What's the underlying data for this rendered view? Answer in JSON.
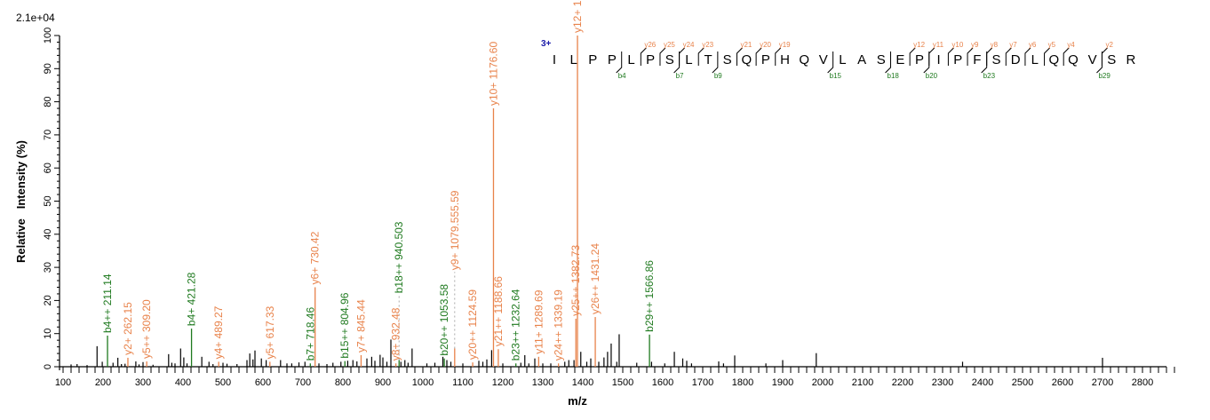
{
  "chart_data": {
    "type": "bar",
    "subtype": "mass-spectrum-sticks",
    "scale_label": "2.1e+04",
    "xlabel": "m/z",
    "ylabel": "Relative   Intensity (%)",
    "xlim": [
      100,
      2880
    ],
    "ylim": [
      0,
      100
    ],
    "x_ticks": [
      100,
      200,
      300,
      400,
      500,
      600,
      700,
      800,
      900,
      1000,
      1100,
      1200,
      1300,
      1400,
      1500,
      1600,
      1700,
      1800,
      1900,
      2000,
      2100,
      2200,
      2300,
      2400,
      2500,
      2600,
      2700,
      2800
    ],
    "y_ticks": [
      0,
      10,
      20,
      30,
      40,
      50,
      60,
      70,
      80,
      90,
      100
    ],
    "grid": false,
    "colors": {
      "y_ion": "#e8824a",
      "b_ion": "#1f7a1f",
      "unassigned": "#000000",
      "charge": "#1a1aa8"
    },
    "annotated_peaks": [
      {
        "label": "b4++ 211.14",
        "mz": 211.14,
        "intensity": 9.4,
        "ion": "b"
      },
      {
        "label": "y2+ 262.15",
        "mz": 262.15,
        "intensity": 2.7,
        "ion": "y"
      },
      {
        "label": "y5++ 309.20",
        "mz": 309.2,
        "intensity": 1.6,
        "ion": "y"
      },
      {
        "label": "b4+ 421.28",
        "mz": 421.28,
        "intensity": 11.5,
        "ion": "b"
      },
      {
        "label": "y4+ 489.27",
        "mz": 489.27,
        "intensity": 1.5,
        "ion": "y"
      },
      {
        "label": "y5+ 617.33",
        "mz": 617.33,
        "intensity": 1.5,
        "ion": "y"
      },
      {
        "label": "b7+ 718.46",
        "mz": 718.46,
        "intensity": 1.0,
        "ion": "b"
      },
      {
        "label": "y6+ 730.42",
        "mz": 730.42,
        "intensity": 24.0,
        "ion": "y"
      },
      {
        "label": "b15++ 804.96",
        "mz": 804.96,
        "intensity": 1.7,
        "ion": "b"
      },
      {
        "label": "y7+ 845.44",
        "mz": 845.44,
        "intensity": 3.5,
        "ion": "y"
      },
      {
        "label": "y8+ 932.48",
        "mz": 932.48,
        "intensity": 1.0,
        "ion": "y"
      },
      {
        "label": "b18++ 940.503",
        "mz": 940.5,
        "intensity": 2.0,
        "ion": "b"
      },
      {
        "label": "b20++ 1053.58",
        "mz": 1053.58,
        "intensity": 2.5,
        "ion": "b"
      },
      {
        "label": "y9+ 1079.555.59",
        "mz": 1079.55,
        "intensity": 5.5,
        "ion": "y"
      },
      {
        "label": "y20++ 1124.59",
        "mz": 1124.59,
        "intensity": 1.3,
        "ion": "y"
      },
      {
        "label": "y10+ 1176.60",
        "mz": 1176.6,
        "intensity": 78.0,
        "ion": "y"
      },
      {
        "label": "y21++ 1188.66",
        "mz": 1188.66,
        "intensity": 5.3,
        "ion": "y"
      },
      {
        "label": "b23++ 1232.64",
        "mz": 1232.64,
        "intensity": 1.0,
        "ion": "b"
      },
      {
        "label": "y11+ 1289.69",
        "mz": 1289.69,
        "intensity": 3.0,
        "ion": "y"
      },
      {
        "label": "y24++ 1339.19",
        "mz": 1339.19,
        "intensity": 1.0,
        "ion": "y"
      },
      {
        "label": "y25++ 1382.73",
        "mz": 1382.73,
        "intensity": 14.5,
        "ion": "y"
      },
      {
        "label": "y12+ 1386.7",
        "mz": 1386.7,
        "intensity": 100.0,
        "ion": "y"
      },
      {
        "label": "y26++ 1431.24",
        "mz": 1431.24,
        "intensity": 15.0,
        "ion": "y"
      },
      {
        "label": "b29++ 1566.86",
        "mz": 1566.86,
        "intensity": 9.7,
        "ion": "b"
      }
    ],
    "unannotated_peaks": [
      [
        120,
        0.7
      ],
      [
        135,
        0.8
      ],
      [
        160,
        0.5
      ],
      [
        185,
        6.2
      ],
      [
        198,
        1.5
      ],
      [
        225,
        1.2
      ],
      [
        237,
        2.7
      ],
      [
        246,
        0.8
      ],
      [
        255,
        0.9
      ],
      [
        282,
        1.6
      ],
      [
        290,
        0.7
      ],
      [
        300,
        1.4
      ],
      [
        325,
        0.6
      ],
      [
        364,
        3.8
      ],
      [
        372,
        1.2
      ],
      [
        380,
        1.0
      ],
      [
        394,
        5.5
      ],
      [
        402,
        2.8
      ],
      [
        410,
        1.0
      ],
      [
        447,
        3.0
      ],
      [
        465,
        1.5
      ],
      [
        475,
        0.8
      ],
      [
        500,
        1.2
      ],
      [
        510,
        0.9
      ],
      [
        535,
        0.8
      ],
      [
        560,
        2.0
      ],
      [
        567,
        4.0
      ],
      [
        575,
        2.2
      ],
      [
        580,
        4.9
      ],
      [
        596,
        2.5
      ],
      [
        608,
        2.0
      ],
      [
        644,
        2.0
      ],
      [
        660,
        1.0
      ],
      [
        672,
        1.0
      ],
      [
        690,
        1.3
      ],
      [
        705,
        1.5
      ],
      [
        740,
        1.0
      ],
      [
        760,
        0.8
      ],
      [
        775,
        1.2
      ],
      [
        795,
        1.5
      ],
      [
        812,
        1.8
      ],
      [
        825,
        2.0
      ],
      [
        835,
        1.6
      ],
      [
        860,
        2.5
      ],
      [
        872,
        3.0
      ],
      [
        880,
        1.8
      ],
      [
        893,
        3.6
      ],
      [
        900,
        2.8
      ],
      [
        910,
        1.5
      ],
      [
        920,
        8.2
      ],
      [
        945,
        1.5
      ],
      [
        955,
        2.0
      ],
      [
        963,
        1.2
      ],
      [
        973,
        5.5
      ],
      [
        1010,
        1.0
      ],
      [
        1030,
        1.2
      ],
      [
        1050,
        3.0
      ],
      [
        1060,
        2.0
      ],
      [
        1070,
        1.5
      ],
      [
        1100,
        1.0
      ],
      [
        1140,
        1.8
      ],
      [
        1150,
        1.5
      ],
      [
        1160,
        2.2
      ],
      [
        1172,
        5.0
      ],
      [
        1200,
        1.0
      ],
      [
        1245,
        1.2
      ],
      [
        1255,
        3.5
      ],
      [
        1265,
        1.0
      ],
      [
        1280,
        2.5
      ],
      [
        1300,
        1.0
      ],
      [
        1320,
        1.0
      ],
      [
        1355,
        1.5
      ],
      [
        1365,
        2.0
      ],
      [
        1378,
        2.0
      ],
      [
        1395,
        4.5
      ],
      [
        1410,
        1.5
      ],
      [
        1420,
        2.5
      ],
      [
        1440,
        1.5
      ],
      [
        1453,
        2.8
      ],
      [
        1462,
        4.5
      ],
      [
        1471,
        7.0
      ],
      [
        1491,
        9.8
      ],
      [
        1485,
        1.5
      ],
      [
        1535,
        1.2
      ],
      [
        1572,
        1.5
      ],
      [
        1605,
        1.0
      ],
      [
        1629,
        4.5
      ],
      [
        1650,
        2.5
      ],
      [
        1660,
        1.8
      ],
      [
        1672,
        1.0
      ],
      [
        1740,
        1.6
      ],
      [
        1752,
        1.0
      ],
      [
        1780,
        3.4
      ],
      [
        1858,
        1.0
      ],
      [
        1900,
        2.0
      ],
      [
        1984,
        4.1
      ],
      [
        2350,
        1.5
      ],
      [
        2700,
        2.7
      ]
    ],
    "peptide": {
      "charge": "3+",
      "sequence": "ILPPLPSLTSQPHQVLASEPIPFSDLQQVSR",
      "y_ions": [
        "y26",
        "y25",
        "y24",
        "y23",
        "y21",
        "y20",
        "y19",
        "y12",
        "y11",
        "y10",
        "y9",
        "y8",
        "y7",
        "y6",
        "y5",
        "y4",
        "y2"
      ],
      "b_ions": [
        "b4",
        "b7",
        "b9",
        "b15",
        "b18",
        "b20",
        "b23",
        "b29"
      ]
    }
  }
}
